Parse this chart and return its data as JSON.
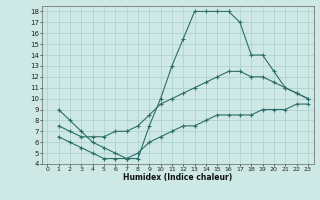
{
  "xlabel": "Humidex (Indice chaleur)",
  "bg_color": "#cde8e5",
  "grid_color": "#aacfcc",
  "line_color": "#2e6e6a",
  "xlim": [
    -0.5,
    23.5
  ],
  "ylim": [
    4,
    18.5
  ],
  "xticks": [
    0,
    1,
    2,
    3,
    4,
    5,
    6,
    7,
    8,
    9,
    10,
    11,
    12,
    13,
    14,
    15,
    16,
    17,
    18,
    19,
    20,
    21,
    22,
    23
  ],
  "yticks": [
    4,
    5,
    6,
    7,
    8,
    9,
    10,
    11,
    12,
    13,
    14,
    15,
    16,
    17,
    18
  ],
  "line1_x": [
    1,
    2,
    3,
    4,
    5,
    6,
    7,
    8,
    9,
    10,
    11,
    12,
    13,
    14,
    15,
    16,
    17,
    18,
    19,
    20,
    21,
    22,
    23
  ],
  "line1_y": [
    9,
    8,
    7,
    6,
    5.5,
    5,
    4.5,
    4.5,
    7.5,
    10,
    13,
    15.5,
    18,
    18,
    18,
    18,
    17,
    14,
    14,
    12.5,
    11,
    10.5,
    10
  ],
  "line2_x": [
    1,
    2,
    3,
    4,
    5,
    6,
    7,
    8,
    9,
    10,
    11,
    12,
    13,
    14,
    15,
    16,
    17,
    18,
    19,
    20,
    21,
    22,
    23
  ],
  "line2_y": [
    7.5,
    7,
    6.5,
    6.5,
    6.5,
    7,
    7,
    7.5,
    8.5,
    9.5,
    10,
    10.5,
    11,
    11.5,
    12,
    12.5,
    12.5,
    12,
    12,
    11.5,
    11,
    10.5,
    10
  ],
  "line3_x": [
    1,
    2,
    3,
    4,
    5,
    6,
    7,
    8,
    9,
    10,
    11,
    12,
    13,
    14,
    15,
    16,
    17,
    18,
    19,
    20,
    21,
    22,
    23
  ],
  "line3_y": [
    6.5,
    6,
    5.5,
    5,
    4.5,
    4.5,
    4.5,
    5,
    6,
    6.5,
    7,
    7.5,
    7.5,
    8,
    8.5,
    8.5,
    8.5,
    8.5,
    9,
    9,
    9,
    9.5,
    9.5
  ]
}
